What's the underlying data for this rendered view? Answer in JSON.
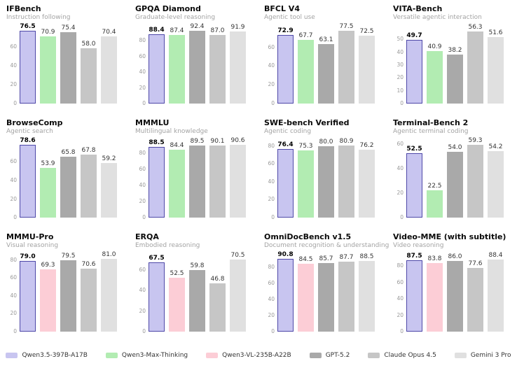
{
  "page": {
    "background": "#ffffff"
  },
  "palette": {
    "qwen35": {
      "fill": "#c8c5f0",
      "edge": "#4e48a8"
    },
    "qwenmax": {
      "fill": "#b2ecb2"
    },
    "qwenvl": {
      "fill": "#fccdd6"
    },
    "gpt52": {
      "fill": "#a9a9a9"
    },
    "claude": {
      "fill": "#c6c6c6"
    },
    "gemini": {
      "fill": "#e0e0e0"
    }
  },
  "legend": {
    "items": [
      {
        "key": "qwen35",
        "label": "Qwen3.5-397B-A17B"
      },
      {
        "key": "qwenmax",
        "label": "Qwen3-Max-Thinking"
      },
      {
        "key": "qwenvl",
        "label": "Qwen3-VL-235B-A22B"
      },
      {
        "key": "gpt52",
        "label": "GPT-5.2"
      },
      {
        "key": "claude",
        "label": "Claude Opus 4.5"
      },
      {
        "key": "gemini",
        "label": "Gemini 3 Pro"
      }
    ]
  },
  "chart_data": [
    {
      "id": "ifbench",
      "type": "bar",
      "title": "IFBench",
      "subtitle": "Instruction following",
      "categories": [
        "Qwen3.5-397B-A17B",
        "Qwen3-Max-Thinking",
        "GPT-5.2",
        "Claude Opus 4.5",
        "Gemini 3 Pro"
      ],
      "series_keys": [
        "qwen35",
        "qwenmax",
        "gpt52",
        "claude",
        "gemini"
      ],
      "values": [
        76.5,
        70.9,
        75.4,
        58.0,
        70.4
      ],
      "labels": [
        "76.5",
        "70.9",
        "75.4",
        "58.0",
        "70.4"
      ],
      "yticks": [
        0,
        20,
        40,
        60
      ],
      "ylim": [
        0,
        81
      ],
      "highlight": "Qwen3.5-397B-A17B",
      "grid": false
    },
    {
      "id": "gpqa-diamond",
      "type": "bar",
      "title": "GPQA Diamond",
      "subtitle": "Graduate-level reasoning",
      "categories": [
        "Qwen3.5-397B-A17B",
        "Qwen3-Max-Thinking",
        "GPT-5.2",
        "Claude Opus 4.5",
        "Gemini 3 Pro"
      ],
      "series_keys": [
        "qwen35",
        "qwenmax",
        "gpt52",
        "claude",
        "gemini"
      ],
      "values": [
        88.4,
        87.4,
        92.4,
        87.0,
        91.9
      ],
      "labels": [
        "88.4",
        "87.4",
        "92.4",
        "87.0",
        "91.9"
      ],
      "yticks": [
        0,
        20,
        40,
        60,
        80
      ],
      "ylim": [
        0,
        98
      ],
      "highlight": "Qwen3.5-397B-A17B",
      "grid": false
    },
    {
      "id": "bfcl-v4",
      "type": "bar",
      "title": "BFCL V4",
      "subtitle": "Agentic tool use",
      "categories": [
        "Qwen3.5-397B-A17B",
        "Qwen3-Max-Thinking",
        "GPT-5.2",
        "Claude Opus 4.5",
        "Gemini 3 Pro"
      ],
      "series_keys": [
        "qwen35",
        "qwenmax",
        "gpt52",
        "claude",
        "gemini"
      ],
      "values": [
        72.9,
        67.7,
        63.1,
        77.5,
        72.5
      ],
      "labels": [
        "72.9",
        "67.7",
        "63.1",
        "77.5",
        "72.5"
      ],
      "yticks": [
        0,
        20,
        40,
        60
      ],
      "ylim": [
        0,
        82
      ],
      "highlight": "Qwen3.5-397B-A17B",
      "grid": false
    },
    {
      "id": "vita-bench",
      "type": "bar",
      "title": "VITA-Bench",
      "subtitle": "Versatile agentic interaction",
      "categories": [
        "Qwen3.5-397B-A17B",
        "Qwen3-Max-Thinking",
        "GPT-5.2",
        "Claude Opus 4.5",
        "Gemini 3 Pro"
      ],
      "series_keys": [
        "qwen35",
        "qwenmax",
        "gpt52",
        "claude",
        "gemini"
      ],
      "values": [
        49.7,
        40.9,
        38.2,
        56.3,
        51.6
      ],
      "labels": [
        "49.7",
        "40.9",
        "38.2",
        "56.3",
        "51.6"
      ],
      "yticks": [
        0,
        10,
        20,
        30,
        40,
        50
      ],
      "ylim": [
        0,
        60
      ],
      "highlight": "Qwen3.5-397B-A17B",
      "grid": false
    },
    {
      "id": "browsecomp",
      "type": "bar",
      "title": "BrowseComp",
      "subtitle": "Agentic search",
      "categories": [
        "Qwen3.5-397B-A17B",
        "Qwen3-Max-Thinking",
        "GPT-5.2",
        "Claude Opus 4.5",
        "Gemini 3 Pro"
      ],
      "series_keys": [
        "qwen35",
        "qwenmax",
        "gpt52",
        "claude",
        "gemini"
      ],
      "values": [
        78.6,
        53.9,
        65.8,
        67.8,
        59.2
      ],
      "labels": [
        "78.6",
        "53.9",
        "65.8",
        "67.8",
        "59.2"
      ],
      "yticks": [
        0,
        20,
        40,
        60
      ],
      "ylim": [
        0,
        83
      ],
      "highlight": "Qwen3.5-397B-A17B",
      "grid": false
    },
    {
      "id": "mmmlu",
      "type": "bar",
      "title": "MMMLU",
      "subtitle": "Multilingual knowledge",
      "categories": [
        "Qwen3.5-397B-A17B",
        "Qwen3-Max-Thinking",
        "GPT-5.2",
        "Claude Opus 4.5",
        "Gemini 3 Pro"
      ],
      "series_keys": [
        "qwen35",
        "qwenmax",
        "gpt52",
        "claude",
        "gemini"
      ],
      "values": [
        88.5,
        84.4,
        89.5,
        90.1,
        90.6
      ],
      "labels": [
        "88.5",
        "84.4",
        "89.5",
        "90.1",
        "90.6"
      ],
      "yticks": [
        0,
        20,
        40,
        60,
        80
      ],
      "ylim": [
        0,
        96
      ],
      "highlight": "Qwen3.5-397B-A17B",
      "grid": false
    },
    {
      "id": "swe-bench-verified",
      "type": "bar",
      "title": "SWE-bench Verified",
      "subtitle": "Agentic coding",
      "categories": [
        "Qwen3.5-397B-A17B",
        "Qwen3-Max-Thinking",
        "GPT-5.2",
        "Claude Opus 4.5",
        "Gemini 3 Pro"
      ],
      "series_keys": [
        "qwen35",
        "qwenmax",
        "gpt52",
        "claude",
        "gemini"
      ],
      "values": [
        76.4,
        75.3,
        80.0,
        80.9,
        76.2
      ],
      "labels": [
        "76.4",
        "75.3",
        "80.0",
        "80.9",
        "76.2"
      ],
      "yticks": [
        0,
        20,
        40,
        60,
        80
      ],
      "ylim": [
        0,
        86
      ],
      "highlight": "Qwen3.5-397B-A17B",
      "grid": false
    },
    {
      "id": "terminal-bench-2",
      "type": "bar",
      "title": "Terminal-Bench 2",
      "subtitle": "Agentic terminal coding",
      "categories": [
        "Qwen3.5-397B-A17B",
        "Qwen3-Max-Thinking",
        "GPT-5.2",
        "Claude Opus 4.5",
        "Gemini 3 Pro"
      ],
      "series_keys": [
        "qwen35",
        "qwenmax",
        "gpt52",
        "claude",
        "gemini"
      ],
      "values": [
        52.5,
        22.5,
        54.0,
        59.3,
        54.2
      ],
      "labels": [
        "52.5",
        "22.5",
        "54.0",
        "59.3",
        "54.2"
      ],
      "yticks": [
        0,
        20,
        40,
        60
      ],
      "ylim": [
        0,
        63
      ],
      "highlight": "Qwen3.5-397B-A17B",
      "grid": false
    },
    {
      "id": "mmmu-pro",
      "type": "bar",
      "title": "MMMU-Pro",
      "subtitle": "Visual reasoning",
      "categories": [
        "Qwen3.5-397B-A17B",
        "Qwen3-VL-235B-A22B",
        "GPT-5.2",
        "Claude Opus 4.5",
        "Gemini 3 Pro"
      ],
      "series_keys": [
        "qwen35",
        "qwenvl",
        "gpt52",
        "claude",
        "gemini"
      ],
      "values": [
        79.0,
        69.3,
        79.5,
        70.6,
        81.0
      ],
      "labels": [
        "79.0",
        "69.3",
        "79.5",
        "70.6",
        "81.0"
      ],
      "yticks": [
        0,
        20,
        40,
        60,
        80
      ],
      "ylim": [
        0,
        86
      ],
      "highlight": "Qwen3.5-397B-A17B",
      "grid": false
    },
    {
      "id": "erqa",
      "type": "bar",
      "title": "ERQA",
      "subtitle": "Embodied reasoning",
      "categories": [
        "Qwen3.5-397B-A17B",
        "Qwen3-VL-235B-A22B",
        "GPT-5.2",
        "Claude Opus 4.5",
        "Gemini 3 Pro"
      ],
      "series_keys": [
        "qwen35",
        "qwenvl",
        "gpt52",
        "claude",
        "gemini"
      ],
      "values": [
        67.5,
        52.5,
        59.8,
        46.8,
        70.5
      ],
      "labels": [
        "67.5",
        "52.5",
        "59.8",
        "46.8",
        "70.5"
      ],
      "yticks": [
        0,
        20,
        40,
        60
      ],
      "ylim": [
        0,
        75
      ],
      "highlight": "Qwen3.5-397B-A17B",
      "grid": false
    },
    {
      "id": "omnidocbench-v1-5",
      "type": "bar",
      "title": "OmniDocBench v1.5",
      "subtitle": "Document recognition & understanding",
      "categories": [
        "Qwen3.5-397B-A17B",
        "Qwen3-VL-235B-A22B",
        "GPT-5.2",
        "Claude Opus 4.5",
        "Gemini 3 Pro"
      ],
      "series_keys": [
        "qwen35",
        "qwenvl",
        "gpt52",
        "claude",
        "gemini"
      ],
      "values": [
        90.8,
        84.5,
        85.7,
        87.7,
        88.5
      ],
      "labels": [
        "90.8",
        "84.5",
        "85.7",
        "87.7",
        "88.5"
      ],
      "yticks": [
        0,
        20,
        40,
        60,
        80
      ],
      "ylim": [
        0,
        96
      ],
      "highlight": "Qwen3.5-397B-A17B",
      "grid": false
    },
    {
      "id": "video-mme",
      "type": "bar",
      "title": "Video-MME (with subtitle)",
      "subtitle": "Video reasoning",
      "categories": [
        "Qwen3.5-397B-A17B",
        "Qwen3-VL-235B-A22B",
        "GPT-5.2",
        "Claude Opus 4.5",
        "Gemini 3 Pro"
      ],
      "series_keys": [
        "qwen35",
        "qwenvl",
        "gpt52",
        "claude",
        "gemini"
      ],
      "values": [
        87.5,
        83.8,
        86.0,
        77.6,
        88.4
      ],
      "labels": [
        "87.5",
        "83.8",
        "86.0",
        "77.6",
        "88.4"
      ],
      "yticks": [
        0,
        20,
        40,
        60,
        80
      ],
      "ylim": [
        0,
        94
      ],
      "highlight": "Qwen3.5-397B-A17B",
      "grid": false
    }
  ]
}
